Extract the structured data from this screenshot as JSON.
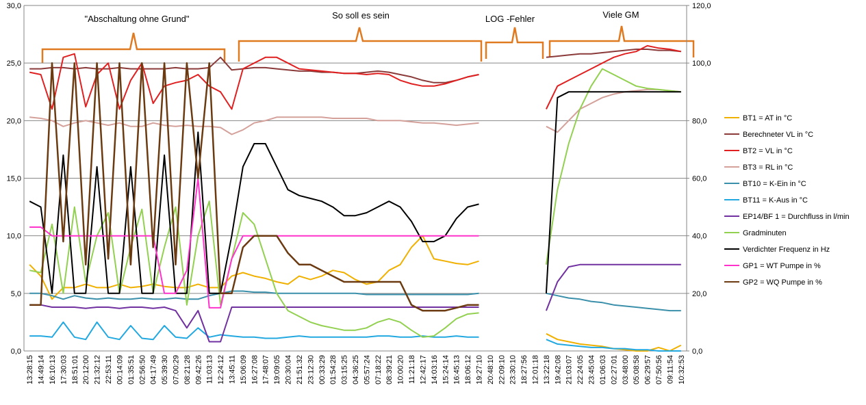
{
  "chart_data": {
    "type": "line",
    "annotations": [
      "\"Abschaltung ohne Grund\"",
      "So soll es sein",
      "LOG -Fehler",
      "Viele GM"
    ],
    "categories": [
      "13:28:15",
      "14:49:14",
      "16:10:13",
      "17:30:03",
      "18:51:01",
      "20:12:00",
      "21:32:12",
      "22:53:11",
      "00:14:09",
      "01:35:51",
      "02:56:50",
      "04:17:49",
      "05:39:30",
      "07:00:29",
      "08:21:28",
      "09:42:26",
      "11:03:13",
      "12:24:12",
      "13:45:11",
      "15:06:09",
      "16:27:08",
      "17:48:07",
      "19:09:05",
      "20:30:04",
      "21:51:32",
      "23:12:30",
      "00:33:29",
      "01:54:28",
      "03:15:25",
      "04:36:25",
      "05:57:24",
      "07:18:22",
      "08:39:21",
      "10:00:20",
      "11:21:18",
      "12:42:17",
      "14:03:16",
      "15:24:14",
      "16:45:13",
      "18:06:12",
      "19:27:10",
      "20:48:10",
      "22:09:10",
      "23:30:10",
      "18:27:56",
      "12:01:18",
      "13:22:18",
      "19:42:08",
      "21:03:07",
      "22:24:05",
      "23:45:04",
      "01:06:03",
      "02:27:01",
      "03:48:00",
      "05:08:58",
      "06:29:57",
      "07:50:56",
      "09:11:54",
      "10:32:53"
    ],
    "ylim": [
      0,
      30
    ],
    "yticks": [
      {
        "value": 0,
        "label": "0,0"
      },
      {
        "value": 5,
        "label": "5,0"
      },
      {
        "value": 10,
        "label": "10,0"
      },
      {
        "value": 15,
        "label": "15,0"
      },
      {
        "value": 20,
        "label": "20,0"
      },
      {
        "value": 25,
        "label": "25,0"
      },
      {
        "value": 30,
        "label": "30,0"
      }
    ],
    "y2lim": [
      0,
      120
    ],
    "y2ticks": [
      {
        "value": 0,
        "label": "0,0"
      },
      {
        "value": 20,
        "label": "20,0"
      },
      {
        "value": 40,
        "label": "40,0"
      },
      {
        "value": 60,
        "label": "60,0"
      },
      {
        "value": 80,
        "label": "80,0"
      },
      {
        "value": 100,
        "label": "100,0"
      },
      {
        "value": 120,
        "label": "120,0"
      }
    ],
    "grid": true,
    "legend": "right",
    "series": [
      {
        "name": "BT1 = AT in °C",
        "color": "#f0b000",
        "values": [
          7.5,
          6.5,
          4.5,
          5.5,
          5.5,
          5.8,
          5.5,
          5.5,
          5.8,
          5.5,
          5.6,
          5.8,
          5.6,
          5.5,
          5.5,
          5.8,
          5.5,
          5.5,
          6.5,
          6.8,
          6.5,
          6.3,
          6,
          5.8,
          6.5,
          6.2,
          6.5,
          7,
          6.8,
          6.2,
          5.8,
          6,
          7,
          7.5,
          9,
          10,
          8,
          7.8,
          7.6,
          7.5,
          7.8,
          null,
          null,
          null,
          null,
          null,
          1.5,
          1,
          0.8,
          0.6,
          0.5,
          0.4,
          0.2,
          0.1,
          0,
          0,
          0.3,
          0,
          0.5
        ]
      },
      {
        "name": "Berechneter VL in °C",
        "color": "#8b3a3a",
        "values": [
          24.5,
          24.5,
          24.6,
          24.6,
          24.5,
          24.6,
          24.5,
          24.5,
          24.6,
          24.5,
          24.5,
          24.5,
          24.5,
          24.6,
          24.5,
          24.5,
          24.6,
          25.5,
          24.4,
          24.5,
          24.6,
          24.6,
          24.5,
          24.4,
          24.3,
          24.3,
          24.2,
          24.2,
          24.1,
          24.1,
          24.2,
          24.3,
          24.2,
          24,
          23.8,
          23.5,
          23.3,
          23.3,
          23.5,
          23.8,
          24,
          null,
          null,
          null,
          null,
          null,
          25.5,
          25.6,
          25.7,
          25.8,
          25.8,
          25.9,
          26,
          26.1,
          26.2,
          26.2,
          26.1,
          26.1,
          26
        ]
      },
      {
        "name": "BT2 = VL in °C",
        "color": "#e02020",
        "values": [
          24.2,
          24,
          21,
          25.5,
          25.8,
          21.2,
          24,
          25,
          21,
          23.5,
          25,
          21.5,
          23,
          23.3,
          23.5,
          24,
          23,
          22.5,
          21,
          24.5,
          25,
          25.5,
          25.5,
          25,
          24.5,
          24.4,
          24.3,
          24.2,
          24.1,
          24.1,
          24,
          24.1,
          24,
          23.5,
          23.2,
          23,
          23,
          23.2,
          23.5,
          23.8,
          24,
          null,
          null,
          null,
          null,
          null,
          21,
          23,
          23.5,
          24,
          24.5,
          25,
          25.5,
          25.8,
          26,
          26.5,
          26.3,
          26.2,
          26
        ]
      },
      {
        "name": "BT3 = RL in °C",
        "color": "#d4a09a",
        "values": [
          20.3,
          20.2,
          20,
          19.5,
          19.8,
          20,
          19.8,
          19.6,
          19.8,
          19.5,
          19.5,
          19.8,
          19.6,
          19.5,
          19.6,
          19.5,
          19.5,
          19.4,
          18.8,
          19.2,
          19.8,
          20,
          20.3,
          20.3,
          20.3,
          20.3,
          20.3,
          20.2,
          20.2,
          20.2,
          20.2,
          20,
          20,
          20,
          19.9,
          19.8,
          19.8,
          19.7,
          19.6,
          19.7,
          19.8,
          null,
          null,
          null,
          null,
          null,
          19.5,
          19,
          20,
          21,
          21.5,
          22,
          22.3,
          22.5,
          22.6,
          22.7,
          22.7,
          22.6,
          22.5
        ]
      },
      {
        "name": "BT10 = K-Ein in °C",
        "color": "#3a8faa",
        "values": [
          5,
          5,
          4.8,
          4.5,
          4.8,
          4.6,
          4.5,
          4.6,
          4.5,
          4.5,
          4.6,
          4.5,
          4.5,
          4.6,
          4.5,
          4.5,
          4.8,
          5,
          5.2,
          5.2,
          5.1,
          5.1,
          5,
          5,
          5,
          5,
          5,
          5,
          5,
          5,
          4.9,
          4.9,
          4.9,
          4.9,
          4.9,
          4.9,
          4.9,
          4.9,
          4.9,
          4.9,
          5,
          null,
          null,
          null,
          null,
          null,
          5,
          4.8,
          4.6,
          4.5,
          4.3,
          4.2,
          4,
          3.9,
          3.8,
          3.7,
          3.6,
          3.5,
          3.5
        ]
      },
      {
        "name": "BT11 = K-Aus in °C",
        "color": "#22a8e0",
        "values": [
          1.3,
          1.3,
          1.2,
          2.5,
          1.2,
          1,
          2.5,
          1.2,
          1,
          2.2,
          1.1,
          1,
          2.2,
          1.2,
          1.1,
          2,
          1.2,
          1.4,
          1.3,
          1.2,
          1.2,
          1.1,
          1.1,
          1.2,
          1.3,
          1.2,
          1.2,
          1.2,
          1.2,
          1.2,
          1.2,
          1.3,
          1.3,
          1.2,
          1.2,
          1.3,
          1.2,
          1.2,
          1.3,
          1.2,
          1.2,
          null,
          null,
          null,
          null,
          null,
          1,
          0.6,
          0.5,
          0.4,
          0.3,
          0.3,
          0.2,
          0.2,
          0.1,
          0.1,
          0,
          0,
          0
        ]
      },
      {
        "name": "EP14/BF 1 = Durchfluss in l/min",
        "color": "#7030a0",
        "values": [
          4,
          4,
          3.8,
          3.8,
          3.8,
          3.7,
          3.8,
          3.8,
          3.7,
          3.8,
          3.8,
          3.7,
          3.8,
          3.5,
          2,
          3.5,
          0.8,
          0.8,
          3.8,
          3.8,
          3.8,
          3.8,
          3.8,
          3.8,
          3.8,
          3.8,
          3.8,
          3.8,
          3.8,
          3.8,
          3.8,
          3.8,
          3.8,
          3.8,
          3.8,
          3.8,
          3.8,
          3.8,
          3.8,
          3.8,
          3.8,
          null,
          null,
          null,
          null,
          null,
          3.5,
          6,
          7.3,
          7.5,
          7.5,
          7.5,
          7.5,
          7.5,
          7.5,
          7.5,
          7.5,
          7.5,
          7.5
        ]
      },
      {
        "name": "Gradminuten",
        "color": "#92d050",
        "values": [
          7,
          6.8,
          11,
          5,
          12.5,
          6,
          10,
          12,
          5,
          9,
          12.3,
          5,
          9,
          12.5,
          4,
          10,
          13,
          4,
          8,
          12,
          11,
          8,
          5,
          3.5,
          3,
          2.5,
          2.2,
          2,
          1.8,
          1.8,
          2,
          2.5,
          2.8,
          2.5,
          1.8,
          1.2,
          1.3,
          2,
          2.8,
          3.2,
          3.3,
          null,
          null,
          null,
          null,
          null,
          7.5,
          14,
          18,
          21,
          23,
          24.5,
          24,
          23.5,
          23,
          22.8,
          22.7,
          22.6,
          22.5
        ]
      },
      {
        "name": "Verdichter Frequenz in Hz",
        "color": "#000000",
        "axis": "y2",
        "values": [
          52,
          50,
          20,
          68,
          20,
          20,
          64,
          20,
          20,
          64,
          20,
          20,
          68,
          20,
          20,
          76,
          20,
          20,
          40,
          64,
          72,
          72,
          64,
          56,
          54,
          53,
          52,
          50,
          47,
          47,
          48,
          50,
          52,
          50,
          45,
          38,
          38,
          40,
          46,
          50,
          51,
          null,
          null,
          null,
          null,
          null,
          20,
          88,
          90,
          90,
          90,
          90,
          90,
          90,
          90,
          90,
          90,
          90,
          90
        ]
      },
      {
        "name": "GP1 = WT Pumpe in %",
        "color": "#ff33cc",
        "axis": "y2",
        "values": [
          43,
          43,
          40,
          40,
          40,
          40,
          40,
          40,
          40,
          40,
          40,
          40,
          20,
          20,
          28,
          60,
          15,
          15,
          32,
          40,
          40,
          40,
          40,
          40,
          40,
          40,
          40,
          40,
          40,
          40,
          40,
          40,
          40,
          40,
          40,
          40,
          40,
          40,
          40,
          40,
          40,
          null,
          null,
          null,
          null,
          null,
          null,
          null,
          null,
          null,
          null,
          null,
          null,
          null,
          null,
          null,
          null,
          null,
          null
        ]
      },
      {
        "name": "GP2 = WQ Pumpe in %",
        "color": "#6b3a10",
        "axis": "y2",
        "values": [
          16,
          16,
          100,
          38,
          100,
          30,
          100,
          32,
          100,
          30,
          100,
          36,
          100,
          30,
          100,
          60,
          100,
          20,
          20,
          36,
          40,
          40,
          40,
          34,
          30,
          30,
          28,
          26,
          24,
          24,
          24,
          24,
          24,
          24,
          16,
          14,
          14,
          14,
          15,
          16,
          16,
          null,
          null,
          null,
          null,
          null,
          null,
          null,
          null,
          null,
          null,
          null,
          null,
          null,
          null,
          null,
          null,
          null,
          null
        ]
      }
    ]
  }
}
